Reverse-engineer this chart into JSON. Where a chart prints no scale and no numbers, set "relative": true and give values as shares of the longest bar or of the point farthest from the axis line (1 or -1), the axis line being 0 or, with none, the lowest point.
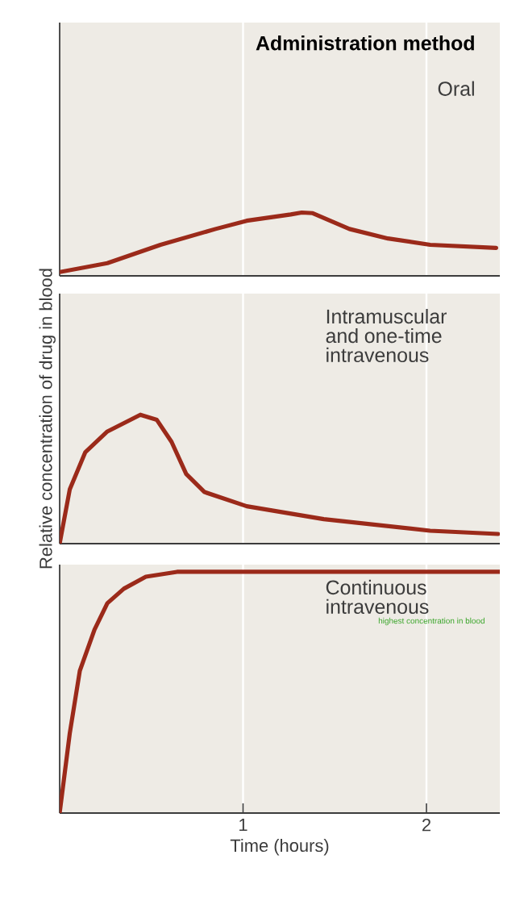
{
  "chart_data": [
    {
      "type": "line",
      "relative": true,
      "annotations": [
        "Administration method"
      ],
      "x": [
        0,
        0.26,
        0.55,
        0.85,
        1.02,
        1.26,
        1.32,
        1.38,
        1.58,
        1.79,
        2.02,
        2.38
      ],
      "xlim": [
        0,
        2.4
      ],
      "xticks": [
        1,
        2
      ],
      "grid": "x",
      "tick_labels": false,
      "series": [
        {
          "name": "Oral",
          "color": "#9b2a1a",
          "values": [
            0.06,
            0.2,
            0.49,
            0.74,
            0.87,
            0.97,
            1.0,
            0.99,
            0.74,
            0.59,
            0.49,
            0.44
          ]
        }
      ]
    },
    {
      "type": "line",
      "relative": true,
      "ylabel": "Relative concentration of drug in blood",
      "x": [
        0,
        0.055,
        0.14,
        0.26,
        0.44,
        0.53,
        0.61,
        0.69,
        0.79,
        1.02,
        1.44,
        2.02,
        2.39
      ],
      "xlim": [
        0,
        2.4
      ],
      "xticks": [
        1,
        2
      ],
      "grid": "x",
      "tick_labels": false,
      "series": [
        {
          "name": "Intramuscular and one-time intravenous",
          "color": "#9b2a1a",
          "values": [
            0,
            0.42,
            0.71,
            0.87,
            1.0,
            0.96,
            0.79,
            0.54,
            0.4,
            0.29,
            0.19,
            0.1,
            0.075
          ]
        }
      ]
    },
    {
      "type": "line",
      "relative": true,
      "xlabel": "Time (hours)",
      "annotations": [
        "highest concentration in blood"
      ],
      "x": [
        0,
        0.055,
        0.11,
        0.19,
        0.26,
        0.35,
        0.47,
        0.64,
        2.4
      ],
      "xlim": [
        0,
        2.4
      ],
      "xticks": [
        1,
        2
      ],
      "grid": "x",
      "tick_labels": "x",
      "series": [
        {
          "name": "Continuous intravenous",
          "color": "#9b2a1a",
          "values": [
            0,
            0.33,
            0.59,
            0.76,
            0.87,
            0.93,
            0.98,
            1.0,
            1.0
          ]
        }
      ]
    }
  ]
}
